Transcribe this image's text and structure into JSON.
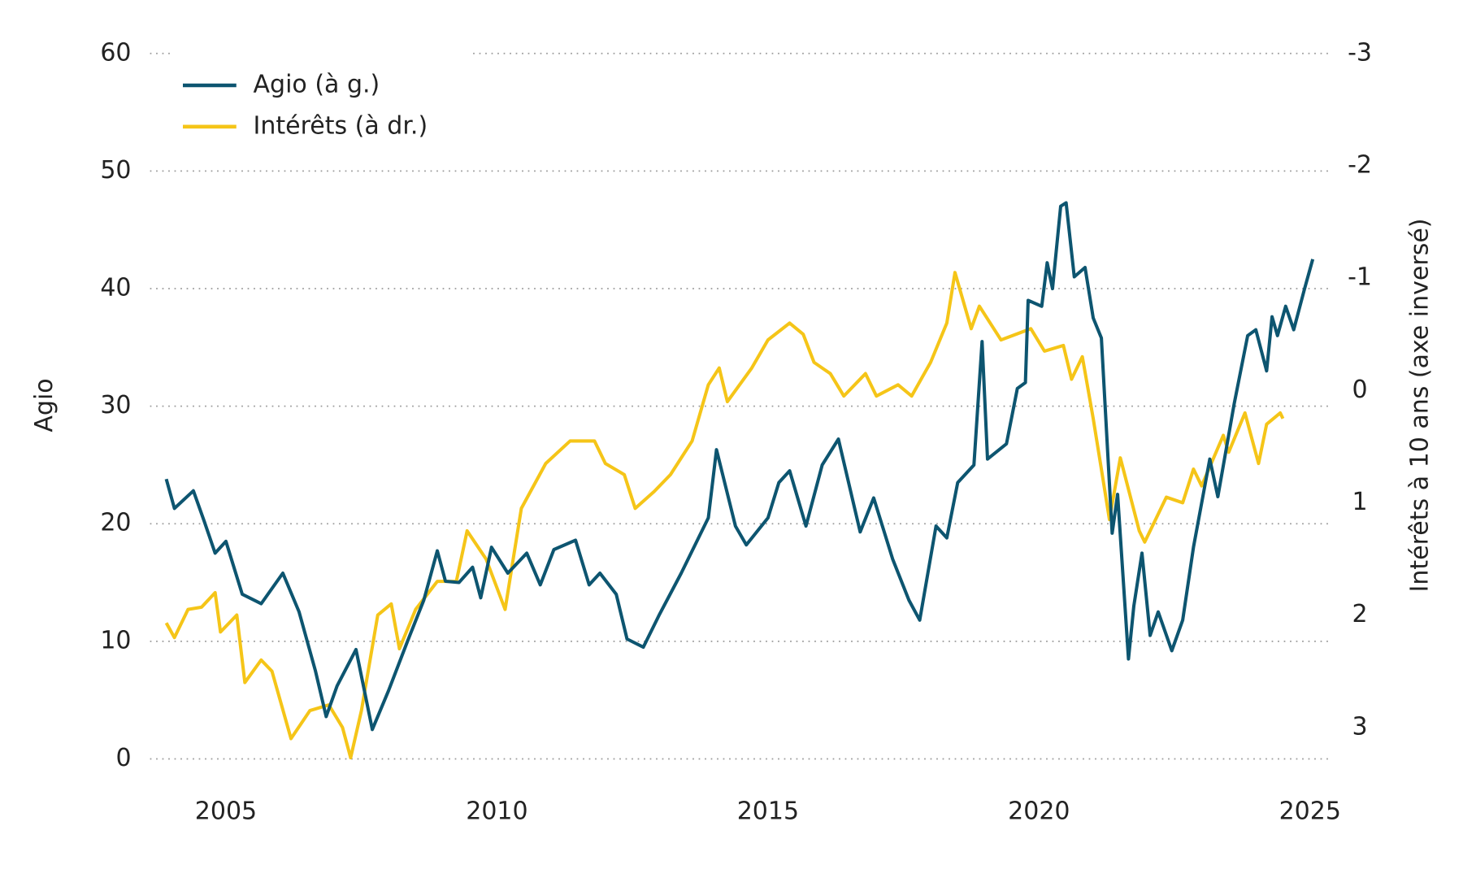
{
  "chart_data": {
    "type": "line",
    "y_label": "Agio",
    "y2_label": "Intérêts à 10 ans (axe inversé)",
    "xlim": [
      2003.6,
      2025.4
    ],
    "xticks": [
      2005,
      2010,
      2015,
      2020,
      2025
    ],
    "ylim": [
      0,
      60
    ],
    "yticks": [
      0,
      10,
      20,
      30,
      40,
      50,
      60
    ],
    "y2lim": [
      3.28,
      -3
    ],
    "y2ticks": [
      3,
      2,
      1,
      0,
      -1,
      -2,
      -3
    ],
    "grid": true,
    "legend": "top-left",
    "series": [
      {
        "name": "Agio (à g.)",
        "color": "#0d5570",
        "axis": "y",
        "x": [
          2003.9,
          2004.05,
          2004.4,
          2004.6,
          2004.8,
          2005.0,
          2005.3,
          2005.65,
          2006.05,
          2006.35,
          2006.65,
          2006.85,
          2007.05,
          2007.4,
          2007.7,
          2008.0,
          2008.35,
          2008.65,
          2008.9,
          2009.05,
          2009.3,
          2009.55,
          2009.7,
          2009.9,
          2010.2,
          2010.55,
          2010.8,
          2011.05,
          2011.45,
          2011.7,
          2011.9,
          2012.2,
          2012.4,
          2012.7,
          2013.0,
          2013.4,
          2013.9,
          2014.05,
          2014.4,
          2014.6,
          2015.0,
          2015.2,
          2015.4,
          2015.7,
          2016.0,
          2016.3,
          2016.7,
          2016.95,
          2017.3,
          2017.6,
          2017.8,
          2018.1,
          2018.3,
          2018.5,
          2018.8,
          2018.95,
          2019.05,
          2019.4,
          2019.6,
          2019.75,
          2019.8,
          2020.05,
          2020.15,
          2020.25,
          2020.4,
          2020.5,
          2020.65,
          2020.85,
          2021.0,
          2021.15,
          2021.35,
          2021.45,
          2021.65,
          2021.75,
          2021.9,
          2022.05,
          2022.2,
          2022.45,
          2022.65,
          2022.85,
          2023.15,
          2023.3,
          2023.6,
          2023.85,
          2024.0,
          2024.2,
          2024.3,
          2024.4,
          2024.55,
          2024.7,
          2024.9,
          2025.05
        ],
        "values": [
          23.8,
          21.3,
          22.8,
          20.2,
          17.5,
          18.5,
          14,
          13.2,
          15.8,
          12.5,
          7.5,
          3.6,
          6.2,
          9.3,
          2.5,
          5.8,
          10,
          13.5,
          17.7,
          15.1,
          15,
          16.3,
          13.7,
          18,
          15.8,
          17.5,
          14.8,
          17.8,
          18.6,
          14.8,
          15.8,
          14,
          10.2,
          9.5,
          12.3,
          15.8,
          20.5,
          26.3,
          19.8,
          18.2,
          20.5,
          23.5,
          24.5,
          19.8,
          25,
          27.2,
          19.3,
          22.2,
          17,
          13.5,
          11.8,
          19.8,
          18.8,
          23.5,
          25,
          35.5,
          25.5,
          26.8,
          31.5,
          32,
          39,
          38.5,
          42.2,
          40,
          47,
          47.3,
          41,
          41.8,
          37.5,
          35.8,
          19.2,
          22.5,
          8.5,
          13,
          17.5,
          10.5,
          12.5,
          9.2,
          11.8,
          18,
          25.5,
          22.3,
          30.2,
          36,
          36.5,
          33,
          37.6,
          36,
          38.5,
          36.5,
          40,
          42.5
        ]
      },
      {
        "name": "Intérêts (à dr.)",
        "color": "#f5c518",
        "axis": "y2",
        "x": [
          2003.9,
          2004.05,
          2004.3,
          2004.55,
          2004.8,
          2004.9,
          2005.2,
          2005.35,
          2005.65,
          2005.85,
          2006.2,
          2006.55,
          2006.9,
          2007.15,
          2007.3,
          2007.5,
          2007.8,
          2008.05,
          2008.2,
          2008.5,
          2008.9,
          2009.25,
          2009.45,
          2009.8,
          2010.15,
          2010.45,
          2010.9,
          2011.35,
          2011.8,
          2012.0,
          2012.35,
          2012.55,
          2012.9,
          2013.2,
          2013.6,
          2013.9,
          2014.1,
          2014.25,
          2014.7,
          2015.0,
          2015.4,
          2015.65,
          2015.85,
          2016.15,
          2016.4,
          2016.8,
          2017.0,
          2017.4,
          2017.65,
          2018.0,
          2018.3,
          2018.45,
          2018.75,
          2018.9,
          2019.3,
          2019.85,
          2020.1,
          2020.45,
          2020.6,
          2020.8,
          2021.0,
          2021.15,
          2021.3,
          2021.5,
          2021.85,
          2021.95,
          2022.35,
          2022.65,
          2022.85,
          2023.0,
          2023.4,
          2023.5,
          2023.8,
          2024.05,
          2024.2,
          2024.45,
          2024.5
        ],
        "values": [
          2.07,
          2.2,
          1.95,
          1.93,
          1.8,
          2.15,
          2.0,
          2.6,
          2.4,
          2.5,
          3.1,
          2.85,
          2.8,
          3.0,
          3.27,
          2.85,
          2.0,
          1.9,
          2.3,
          1.95,
          1.7,
          1.7,
          1.25,
          1.5,
          1.95,
          1.05,
          0.65,
          0.45,
          0.45,
          0.65,
          0.75,
          1.05,
          0.9,
          0.75,
          0.45,
          -0.05,
          -0.2,
          0.1,
          -0.2,
          -0.45,
          -0.6,
          -0.5,
          -0.25,
          -0.15,
          0.05,
          -0.15,
          0.05,
          -0.05,
          0.05,
          -0.25,
          -0.6,
          -1.05,
          -0.55,
          -0.75,
          -0.45,
          -0.55,
          -0.35,
          -0.4,
          -0.1,
          -0.3,
          0.25,
          0.7,
          1.15,
          0.6,
          1.25,
          1.35,
          0.95,
          1.0,
          0.7,
          0.85,
          0.4,
          0.55,
          0.2,
          0.65,
          0.3,
          0.2,
          0.25
        ]
      }
    ]
  }
}
